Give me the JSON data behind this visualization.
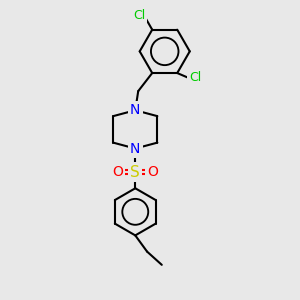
{
  "bg_color": "#e8e8e8",
  "bond_color": "#000000",
  "N_color": "#0000ff",
  "S_color": "#cccc00",
  "O_color": "#ff0000",
  "Cl_color": "#00cc00",
  "bond_width": 1.5,
  "figsize": [
    3.0,
    3.0
  ],
  "dpi": 100,
  "xlim": [
    0,
    10
  ],
  "ylim": [
    0,
    10
  ]
}
